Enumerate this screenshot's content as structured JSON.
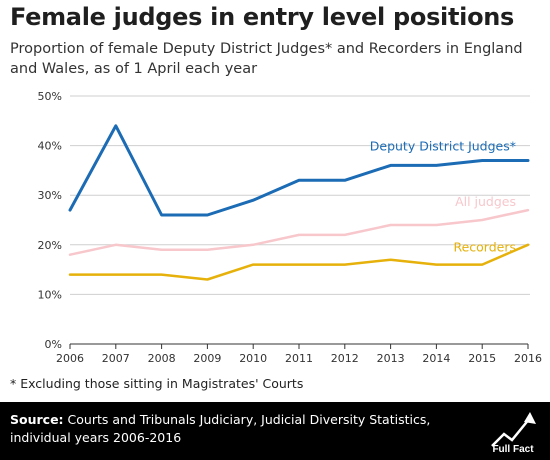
{
  "header": {
    "title": "Female judges in entry level positions",
    "subtitle": "Proportion of female Deputy District Judges* and Recorders in England and Wales, as of 1 April each year"
  },
  "footnote": "* Excluding those sitting in Magistrates' Courts",
  "footer": {
    "source_label": "Source:",
    "source_text": "Courts and Tribunals Judiciary, Judicial Diversity Statistics, individual years 2006-2016",
    "logo_text": "Full Fact"
  },
  "colors": {
    "ddj": "#1b6bb5",
    "all": "#f7c7cc",
    "rec": "#e6b10a",
    "grid": "#cfcfcf",
    "axis": "#333333"
  },
  "chart_data": {
    "type": "line",
    "title": "Female judges in entry level positions",
    "subtitle": "Proportion of female Deputy District Judges* and Recorders in England and Wales, as of 1 April each year",
    "x": [
      "2006",
      "2007",
      "2008",
      "2009",
      "2010",
      "2011",
      "2012",
      "2013",
      "2014",
      "2015",
      "2016"
    ],
    "ylim": [
      0,
      50
    ],
    "yticks": [
      0,
      10,
      20,
      30,
      40,
      50
    ],
    "ytick_labels": [
      "0%",
      "10%",
      "20%",
      "30%",
      "40%",
      "50%"
    ],
    "grid": true,
    "series": [
      {
        "name": "Deputy District Judges*",
        "color": "#1b6bb5",
        "values": [
          27,
          44,
          26,
          26,
          29,
          33,
          33,
          36,
          36,
          37,
          37
        ]
      },
      {
        "name": "All judges",
        "color": "#f7c7cc",
        "values": [
          18,
          20,
          19,
          19,
          20,
          22,
          22,
          24,
          24,
          25,
          27
        ]
      },
      {
        "name": "Recorders",
        "color": "#e6b10a",
        "values": [
          14,
          14,
          14,
          13,
          16,
          16,
          16,
          17,
          16,
          16,
          20
        ]
      }
    ]
  }
}
